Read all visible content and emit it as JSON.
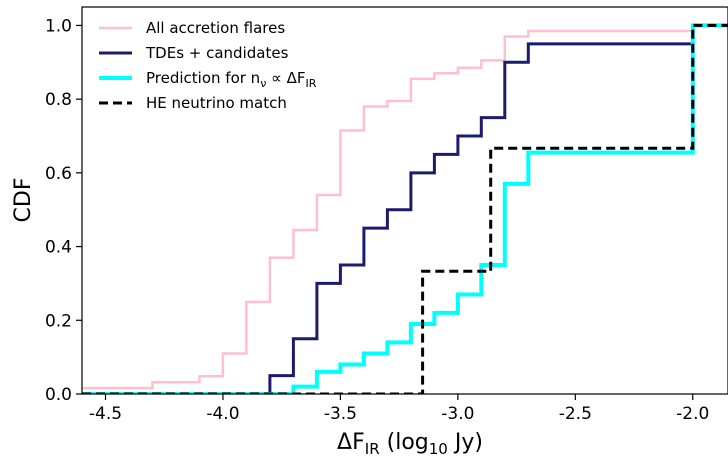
{
  "chart_data": {
    "type": "line",
    "style": "step-cdf",
    "xlabel": {
      "main": "ΔF",
      "sub": "IR",
      "rest": " (log",
      "sub2": "10",
      "end": " Jy)"
    },
    "ylabel": "CDF",
    "xlim": [
      -4.6,
      -1.85
    ],
    "ylim": [
      0.0,
      1.05
    ],
    "xticks": [
      -4.5,
      -4.0,
      -3.5,
      -3.0,
      -2.5,
      -2.0
    ],
    "xtick_labels": [
      "-4.5",
      "-4.0",
      "-3.5",
      "-3.0",
      "-2.5",
      "-2.0"
    ],
    "yticks": [
      0.0,
      0.2,
      0.4,
      0.6,
      0.8,
      1.0
    ],
    "ytick_labels": [
      "0.0",
      "0.2",
      "0.4",
      "0.6",
      "0.8",
      "1.0"
    ],
    "grid": false,
    "legend_position": "top-left",
    "series": [
      {
        "name": "All accretion flares",
        "color": "#ffc0cb",
        "stroke_width": 2.5,
        "dash": "",
        "x": [
          -4.6,
          -4.3,
          -4.3,
          -4.1,
          -4.1,
          -4.0,
          -4.0,
          -3.9,
          -3.9,
          -3.8,
          -3.8,
          -3.7,
          -3.7,
          -3.6,
          -3.6,
          -3.5,
          -3.5,
          -3.4,
          -3.4,
          -3.3,
          -3.3,
          -3.2,
          -3.2,
          -3.1,
          -3.1,
          -3.0,
          -3.0,
          -2.9,
          -2.9,
          -2.8,
          -2.8,
          -2.7,
          -2.7,
          -2.0,
          -2.0,
          -1.85
        ],
        "y": [
          0.016,
          0.016,
          0.032,
          0.032,
          0.048,
          0.048,
          0.11,
          0.11,
          0.25,
          0.25,
          0.37,
          0.37,
          0.445,
          0.445,
          0.54,
          0.54,
          0.715,
          0.715,
          0.78,
          0.78,
          0.795,
          0.795,
          0.855,
          0.855,
          0.87,
          0.87,
          0.885,
          0.885,
          0.905,
          0.905,
          0.97,
          0.97,
          0.985,
          0.985,
          1.0,
          1.0
        ]
      },
      {
        "name": "TDEs + candidates",
        "color": "#1c1c6e",
        "stroke_width": 3,
        "dash": "",
        "x": [
          -3.8,
          -3.8,
          -3.7,
          -3.7,
          -3.6,
          -3.6,
          -3.5,
          -3.5,
          -3.4,
          -3.4,
          -3.3,
          -3.3,
          -3.2,
          -3.2,
          -3.1,
          -3.1,
          -3.0,
          -3.0,
          -2.9,
          -2.9,
          -2.8,
          -2.8,
          -2.7,
          -2.7,
          -2.0,
          -2.0,
          -1.85
        ],
        "y": [
          0.0,
          0.05,
          0.05,
          0.15,
          0.15,
          0.3,
          0.3,
          0.35,
          0.35,
          0.45,
          0.45,
          0.5,
          0.5,
          0.6,
          0.6,
          0.65,
          0.65,
          0.7,
          0.7,
          0.75,
          0.75,
          0.9,
          0.9,
          0.95,
          0.95,
          1.0,
          1.0
        ]
      },
      {
        "name": "Prediction for n_ν ∝ ΔF_IR",
        "color": "#00ffff",
        "stroke_width": 4,
        "dash": "",
        "x": [
          -4.6,
          -3.7,
          -3.7,
          -3.6,
          -3.6,
          -3.5,
          -3.5,
          -3.4,
          -3.4,
          -3.3,
          -3.3,
          -3.2,
          -3.2,
          -3.1,
          -3.1,
          -3.0,
          -3.0,
          -2.9,
          -2.9,
          -2.8,
          -2.8,
          -2.7,
          -2.7,
          -2.0,
          -2.0,
          -1.85
        ],
        "y": [
          0.0,
          0.0,
          0.02,
          0.02,
          0.06,
          0.06,
          0.08,
          0.08,
          0.11,
          0.11,
          0.14,
          0.14,
          0.19,
          0.19,
          0.22,
          0.22,
          0.27,
          0.27,
          0.35,
          0.35,
          0.57,
          0.57,
          0.655,
          0.655,
          1.0,
          1.0
        ]
      },
      {
        "name": "HE neutrino match",
        "color": "#000000",
        "stroke_width": 3,
        "dash": "9,5",
        "x": [
          -4.6,
          -3.15,
          -3.15,
          -2.86,
          -2.86,
          -2.0,
          -2.0,
          -1.85
        ],
        "y": [
          0.0,
          0.0,
          0.333,
          0.333,
          0.667,
          0.667,
          1.0,
          1.0
        ]
      }
    ],
    "legend": [
      {
        "label": "All accretion flares"
      },
      {
        "label_main": "Prediction for n",
        "label_sub": "ν",
        "label_mid": " ∝ ΔF",
        "label_sub2": "IR"
      }
    ],
    "legend_labels": {
      "all_flares": "All accretion flares",
      "tdes": "TDEs + candidates",
      "pred_main": "Prediction for n",
      "pred_sub": "ν",
      "pred_mid": " ∝ ΔF",
      "pred_sub2": "IR",
      "neutrino": "HE neutrino match"
    }
  }
}
